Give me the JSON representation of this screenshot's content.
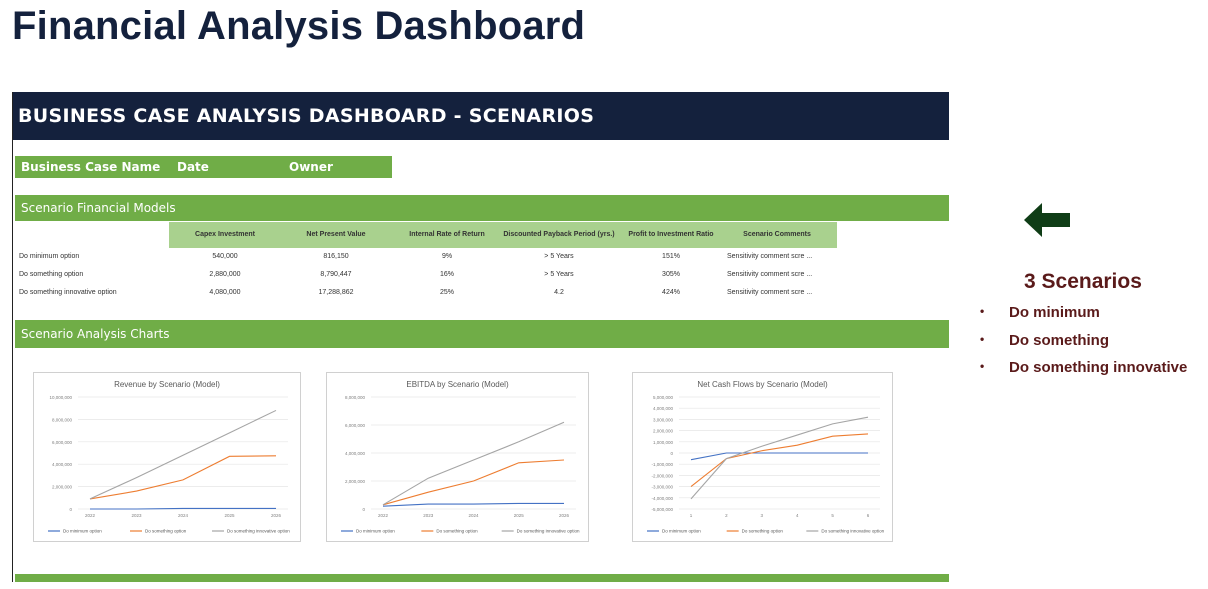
{
  "page_title": "Financial Analysis Dashboard",
  "sheet": {
    "header": "BUSINESS CASE ANALYSIS DASHBOARD - SCENARIOS",
    "case_bar": {
      "name_label": "Business Case Name",
      "date_label": "Date",
      "owner_label": "Owner"
    },
    "models_title": "Scenario Financial Models",
    "table": {
      "columns": [
        "Capex Investment",
        "Net Present Value",
        "Internal Rate of Return",
        "Discounted Payback Period (yrs.)",
        "Profit to Investment Ratio",
        "Scenario Comments"
      ],
      "rows": [
        {
          "name": "Do minimum option",
          "capex": "540,000",
          "npv": "816,150",
          "irr": "9%",
          "payback": "> 5 Years",
          "pir": "151%",
          "comment": "Sensitivity comment scre ..."
        },
        {
          "name": "Do something option",
          "capex": "2,880,000",
          "npv": "8,790,447",
          "irr": "16%",
          "payback": "> 5 Years",
          "pir": "305%",
          "comment": "Sensitivity comment scre ..."
        },
        {
          "name": "Do something innovative option",
          "capex": "4,080,000",
          "npv": "17,288,862",
          "irr": "25%",
          "payback": "4.2",
          "pir": "424%",
          "comment": "Sensitivity comment scre ..."
        }
      ]
    },
    "charts_title": "Scenario Analysis Charts"
  },
  "side_panel": {
    "arrow_icon": "left-arrow-icon",
    "title": "3 Scenarios",
    "items": [
      "Do minimum",
      "Do something",
      "Do something innovative"
    ]
  },
  "colors": {
    "navy": "#14213d",
    "green": "#70ad47",
    "light_green": "#a9d18e",
    "maroon": "#5a1a1a",
    "series_min": "#4472c4",
    "series_something": "#ed7d31",
    "series_innovative": "#a5a5a5"
  },
  "chart_data": [
    {
      "type": "line",
      "title": "Revenue by Scenario (Model)",
      "categories": [
        "2022",
        "2023",
        "2024",
        "2025",
        "2026"
      ],
      "ylim": [
        0,
        10000000
      ],
      "yticks": [
        "0",
        "2,000,000",
        "4,000,000",
        "6,000,000",
        "8,000,000",
        "10,000,000"
      ],
      "series": [
        {
          "name": "Do minimum option",
          "values": [
            0,
            0,
            50000,
            50000,
            50000
          ]
        },
        {
          "name": "Do something option",
          "values": [
            900000,
            1600000,
            2600000,
            4700000,
            4750000
          ]
        },
        {
          "name": "Do something innovative option",
          "values": [
            900000,
            2800000,
            4800000,
            6800000,
            8800000
          ]
        }
      ]
    },
    {
      "type": "line",
      "title": "EBITDA by Scenario (Model)",
      "categories": [
        "2022",
        "2023",
        "2024",
        "2025",
        "2026"
      ],
      "ylim": [
        0,
        8000000
      ],
      "yticks": [
        "0",
        "2,000,000",
        "4,000,000",
        "6,000,000",
        "8,000,000"
      ],
      "series": [
        {
          "name": "Do minimum option",
          "values": [
            200000,
            350000,
            350000,
            400000,
            400000
          ]
        },
        {
          "name": "Do something option",
          "values": [
            300000,
            1200000,
            2000000,
            3300000,
            3500000
          ]
        },
        {
          "name": "Do something innovative option",
          "values": [
            300000,
            2200000,
            3500000,
            4800000,
            6200000
          ]
        }
      ]
    },
    {
      "type": "line",
      "title": "Net Cash Flows by Scenario (Model)",
      "categories": [
        "1",
        "2",
        "3",
        "4",
        "5",
        "6"
      ],
      "ylim": [
        -5000000,
        5000000
      ],
      "yticks": [
        "-5,000,000",
        "-4,000,000",
        "-3,000,000",
        "-2,000,000",
        "-1,000,000",
        "0",
        "1,000,000",
        "2,000,000",
        "3,000,000",
        "4,000,000",
        "5,000,000"
      ],
      "series": [
        {
          "name": "Do minimum option",
          "values": [
            -600000,
            0,
            0,
            0,
            0,
            0
          ]
        },
        {
          "name": "Do something option",
          "values": [
            -3000000,
            -500000,
            200000,
            700000,
            1500000,
            1700000
          ]
        },
        {
          "name": "Do something innovative option",
          "values": [
            -4100000,
            -500000,
            600000,
            1600000,
            2600000,
            3200000
          ]
        }
      ]
    }
  ]
}
